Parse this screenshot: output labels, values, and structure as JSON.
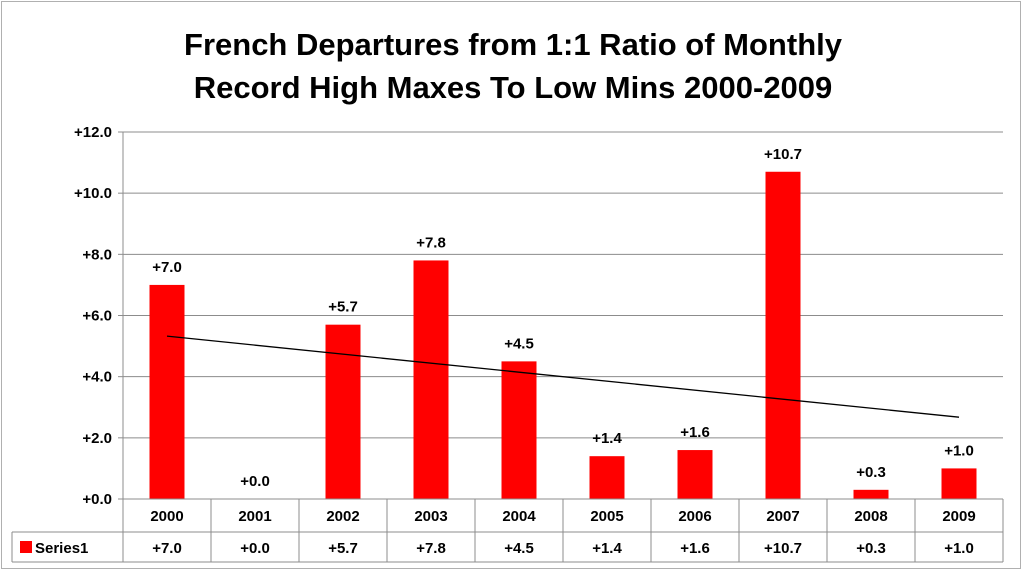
{
  "chart_data": {
    "type": "bar",
    "title_lines": [
      "French Departures from 1:1 Ratio of Monthly",
      "Record High Maxes To Low Mins 2000-2009"
    ],
    "categories": [
      "2000",
      "2001",
      "2002",
      "2003",
      "2004",
      "2005",
      "2006",
      "2007",
      "2008",
      "2009"
    ],
    "series": [
      {
        "name": "Series1",
        "color": "#ff0000",
        "values": [
          7.0,
          0.0,
          5.7,
          7.8,
          4.5,
          1.4,
          1.6,
          10.7,
          0.3,
          1.0
        ],
        "labels": [
          "+7.0",
          "+0.0",
          "+5.7",
          "+7.8",
          "+4.5",
          "+1.4",
          "+1.6",
          "+10.7",
          "+0.3",
          "+1.0"
        ]
      }
    ],
    "y_ticks": [
      {
        "value": 0,
        "label": "+0.0"
      },
      {
        "value": 2,
        "label": "+2.0"
      },
      {
        "value": 4,
        "label": "+4.0"
      },
      {
        "value": 6,
        "label": "+6.0"
      },
      {
        "value": 8,
        "label": "+8.0"
      },
      {
        "value": 10,
        "label": "+10.0"
      },
      {
        "value": 12,
        "label": "+12.0"
      }
    ],
    "ylim": [
      0,
      12
    ],
    "grid": true,
    "trendline": {
      "type": "linear",
      "color": "#000000"
    },
    "data_table": true
  }
}
